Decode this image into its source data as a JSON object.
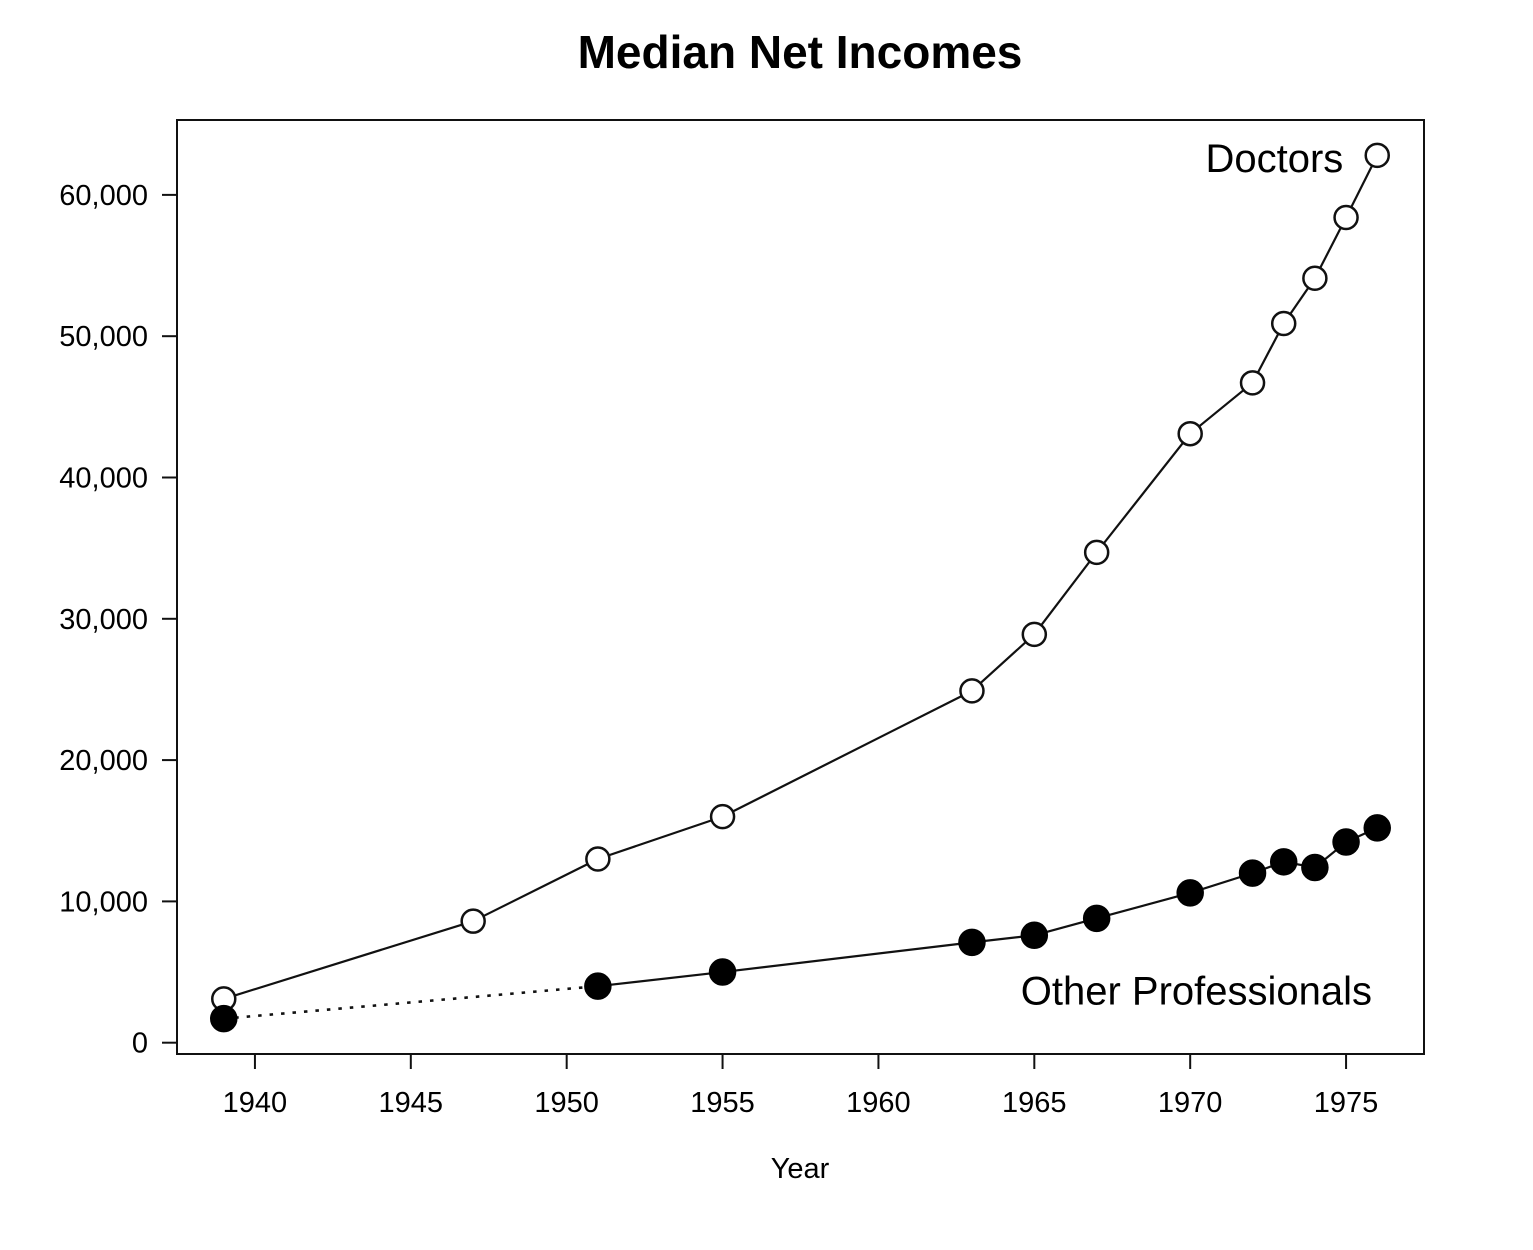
{
  "page": {
    "background": "#ffffff",
    "text_color": "#000000",
    "line_color": "#111111"
  },
  "chart_data": {
    "type": "line",
    "title": "Median Net Incomes",
    "xlabel": "Year",
    "ylabel": "",
    "grid": false,
    "legend_position": "inline-annotations",
    "xlim": [
      1937.5,
      1977.5
    ],
    "ylim": [
      -800,
      65300
    ],
    "x_ticks": [
      1940,
      1945,
      1950,
      1955,
      1960,
      1965,
      1970,
      1975
    ],
    "x_tick_labels": [
      "1940",
      "1945",
      "1950",
      "1955",
      "1960",
      "1965",
      "1970",
      "1975"
    ],
    "y_ticks": [
      0,
      10000,
      20000,
      30000,
      40000,
      50000,
      60000
    ],
    "y_tick_labels": [
      "0",
      "10,000",
      "20,000",
      "30,000",
      "40,000",
      "50,000",
      "60,000"
    ],
    "series": [
      {
        "name": "Doctors",
        "marker": "open-circle",
        "line_style": "solid",
        "x": [
          1939,
          1947,
          1951,
          1955,
          1963,
          1965,
          1967,
          1970,
          1972,
          1973,
          1974,
          1975,
          1976
        ],
        "values": [
          3100,
          8600,
          13000,
          16000,
          24900,
          28900,
          34700,
          43100,
          46700,
          50900,
          54100,
          58400,
          62800
        ]
      },
      {
        "name": "Other Professionals",
        "marker": "filled-circle",
        "line_style": "solid",
        "dotted_pairs": [
          [
            1939,
            1951
          ]
        ],
        "x": [
          1939,
          1951,
          1955,
          1963,
          1965,
          1967,
          1970,
          1972,
          1973,
          1974,
          1975,
          1976
        ],
        "values": [
          1700,
          4000,
          5000,
          7100,
          7600,
          8800,
          10600,
          12000,
          12800,
          12400,
          14200,
          15200
        ]
      }
    ],
    "annotations": [
      {
        "text": "Doctors",
        "x": 1972.7,
        "y": 62600
      },
      {
        "text": "Other Professionals",
        "x": 1970.2,
        "y": 3700
      }
    ]
  }
}
